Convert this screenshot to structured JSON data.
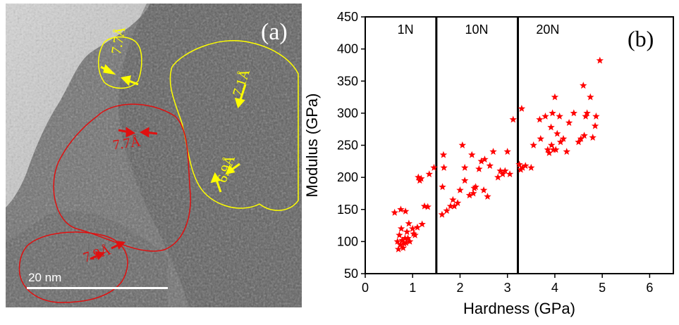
{
  "tem_panel": {
    "panel_label": "(a)",
    "scale_bar_label": "20 nm",
    "fringe_labels": [
      "7.7Å",
      "7.1Å",
      "6.9Å",
      "7.7Å",
      "7.9Å"
    ],
    "colors": {
      "yellow": "#ffff00",
      "red": "#e01010"
    }
  },
  "chart_data": {
    "type": "scatter",
    "panel_label": "(b)",
    "xlabel": "Hardness (GPa)",
    "ylabel": "Modulus (GPa)",
    "xlim": [
      0,
      6.5
    ],
    "ylim": [
      50,
      450
    ],
    "xticks": [
      "0",
      "1",
      "2",
      "3",
      "4",
      "5",
      "6"
    ],
    "yticks": [
      "50",
      "100",
      "150",
      "200",
      "250",
      "300",
      "350",
      "400",
      "450"
    ],
    "grid": false,
    "marker": "star",
    "color": "#ff0000",
    "dividers": [
      1.5,
      3.22
    ],
    "region_labels": [
      {
        "text": "1N",
        "x": 0.85
      },
      {
        "text": "10N",
        "x": 2.35
      },
      {
        "text": "20N",
        "x": 3.85
      }
    ],
    "series": [
      {
        "points": [
          [
            0.62,
            145
          ],
          [
            0.68,
            100
          ],
          [
            0.7,
            88
          ],
          [
            0.72,
            110
          ],
          [
            0.74,
            95
          ],
          [
            0.75,
            150
          ],
          [
            0.76,
            120
          ],
          [
            0.78,
            102
          ],
          [
            0.8,
            90
          ],
          [
            0.82,
            97
          ],
          [
            0.84,
            105
          ],
          [
            0.85,
            147
          ],
          [
            0.86,
            98
          ],
          [
            0.88,
            115
          ],
          [
            0.9,
            105
          ],
          [
            0.92,
            128
          ],
          [
            0.94,
            100
          ],
          [
            1.0,
            120
          ],
          [
            1.02,
            112
          ],
          [
            1.05,
            110
          ],
          [
            1.1,
            122
          ],
          [
            1.12,
            200
          ],
          [
            1.15,
            195
          ],
          [
            1.18,
            198
          ],
          [
            1.2,
            127
          ],
          [
            1.25,
            155
          ],
          [
            1.32,
            154
          ],
          [
            1.35,
            205
          ],
          [
            1.45,
            215
          ],
          [
            1.62,
            142
          ],
          [
            1.63,
            185
          ],
          [
            1.65,
            235
          ],
          [
            1.66,
            215
          ],
          [
            1.72,
            148
          ],
          [
            1.8,
            155
          ],
          [
            1.85,
            165
          ],
          [
            1.88,
            155
          ],
          [
            1.95,
            160
          ],
          [
            2.0,
            180
          ],
          [
            2.05,
            250
          ],
          [
            2.1,
            195
          ],
          [
            2.1,
            215
          ],
          [
            2.2,
            172
          ],
          [
            2.25,
            235
          ],
          [
            2.28,
            175
          ],
          [
            2.3,
            183
          ],
          [
            2.33,
            185
          ],
          [
            2.4,
            213
          ],
          [
            2.45,
            225
          ],
          [
            2.5,
            180
          ],
          [
            2.52,
            228
          ],
          [
            2.58,
            170
          ],
          [
            2.63,
            218
          ],
          [
            2.7,
            240
          ],
          [
            2.8,
            200
          ],
          [
            2.85,
            210
          ],
          [
            2.9,
            205
          ],
          [
            2.95,
            210
          ],
          [
            3.0,
            240
          ],
          [
            3.05,
            205
          ],
          [
            3.12,
            290
          ],
          [
            3.25,
            220
          ],
          [
            3.28,
            212
          ],
          [
            3.3,
            307
          ],
          [
            3.32,
            215
          ],
          [
            3.38,
            218
          ],
          [
            3.5,
            215
          ],
          [
            3.55,
            250
          ],
          [
            3.68,
            290
          ],
          [
            3.7,
            260
          ],
          [
            3.8,
            295
          ],
          [
            3.85,
            243
          ],
          [
            3.88,
            238
          ],
          [
            3.92,
            278
          ],
          [
            3.93,
            250
          ],
          [
            3.95,
            300
          ],
          [
            3.97,
            243
          ],
          [
            4.0,
            325
          ],
          [
            4.02,
            243
          ],
          [
            4.05,
            268
          ],
          [
            4.1,
            295
          ],
          [
            4.12,
            255
          ],
          [
            4.18,
            260
          ],
          [
            4.25,
            240
          ],
          [
            4.3,
            285
          ],
          [
            4.4,
            300
          ],
          [
            4.5,
            255
          ],
          [
            4.55,
            260
          ],
          [
            4.6,
            343
          ],
          [
            4.62,
            265
          ],
          [
            4.65,
            295
          ],
          [
            4.68,
            300
          ],
          [
            4.75,
            325
          ],
          [
            4.8,
            262
          ],
          [
            4.85,
            280
          ],
          [
            4.87,
            295
          ],
          [
            4.95,
            382
          ]
        ]
      }
    ]
  }
}
